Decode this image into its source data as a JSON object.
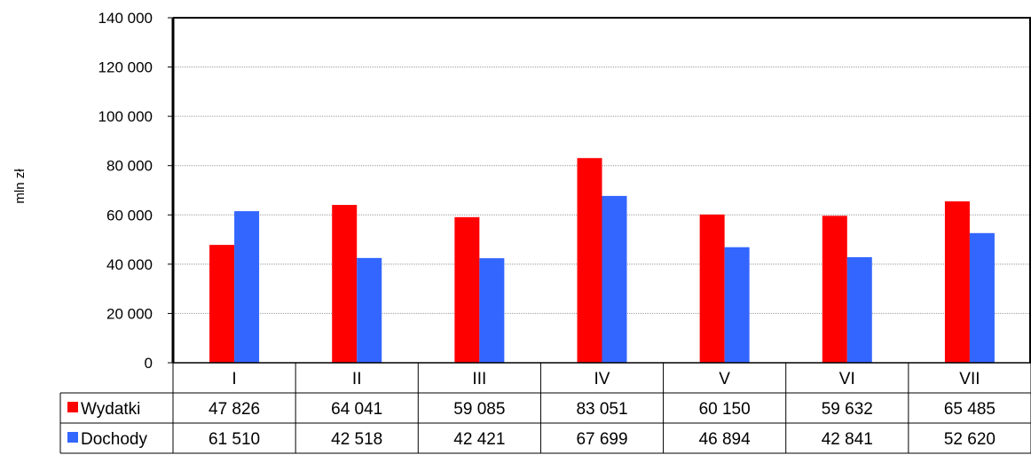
{
  "chart_data": {
    "type": "bar",
    "ylabel": "mln zł",
    "ylim": [
      0,
      140000
    ],
    "yticks": [
      0,
      20000,
      40000,
      60000,
      80000,
      100000,
      120000,
      140000
    ],
    "ytick_labels": [
      "0",
      "20 000",
      "40 000",
      "60 000",
      "80 000",
      "100 000",
      "120 000",
      "140 000"
    ],
    "categories": [
      "I",
      "II",
      "III",
      "IV",
      "V",
      "VI",
      "VII"
    ],
    "series": [
      {
        "name": "Wydatki",
        "color": "#ff0000",
        "values": [
          47826,
          64041,
          59085,
          83051,
          60150,
          59632,
          65485
        ],
        "value_labels": [
          "47 826",
          "64 041",
          "59 085",
          "83 051",
          "60 150",
          "59 632",
          "65 485"
        ]
      },
      {
        "name": "Dochody",
        "color": "#3366ff",
        "values": [
          61510,
          42518,
          42421,
          67699,
          46894,
          42841,
          52620
        ],
        "value_labels": [
          "61 510",
          "42 518",
          "42 421",
          "67 699",
          "46 894",
          "42 841",
          "52 620"
        ]
      }
    ],
    "grid": true,
    "legend": "data-table"
  }
}
